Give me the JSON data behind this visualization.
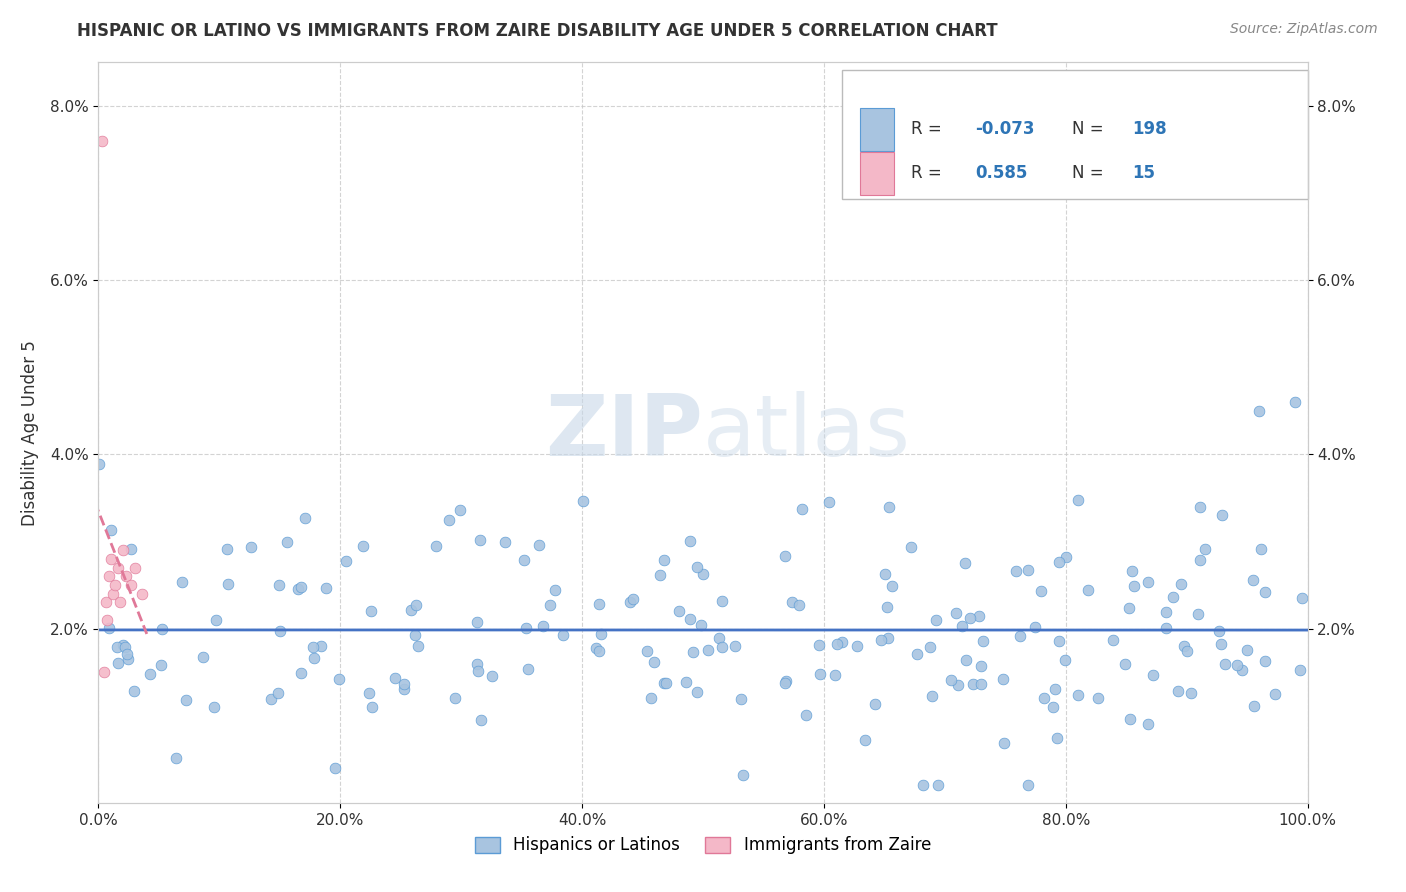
{
  "title": "HISPANIC OR LATINO VS IMMIGRANTS FROM ZAIRE DISABILITY AGE UNDER 5 CORRELATION CHART",
  "source": "Source: ZipAtlas.com",
  "ylabel": "Disability Age Under 5",
  "xlim": [
    0,
    100
  ],
  "ylim": [
    0,
    8.5
  ],
  "xtick_labels": [
    "0.0%",
    "20.0%",
    "40.0%",
    "60.0%",
    "80.0%",
    "100.0%"
  ],
  "xtick_vals": [
    0,
    20,
    40,
    60,
    80,
    100
  ],
  "ytick_labels": [
    "2.0%",
    "4.0%",
    "6.0%",
    "8.0%"
  ],
  "ytick_vals": [
    2,
    4,
    6,
    8
  ],
  "blue_R": -0.073,
  "blue_N": 198,
  "pink_R": 0.585,
  "pink_N": 15,
  "blue_color": "#a8c4e0",
  "pink_color": "#f4b8c8",
  "blue_edge": "#5b9bd5",
  "pink_edge": "#e07898",
  "blue_line_color": "#4472c4",
  "pink_line_color": "#e07898",
  "legend_label_color": "#2e75b6",
  "watermark_color": "#c8d8e8",
  "background_color": "#ffffff",
  "grid_color": "#c8c8c8",
  "title_color": "#333333",
  "source_color": "#888888"
}
